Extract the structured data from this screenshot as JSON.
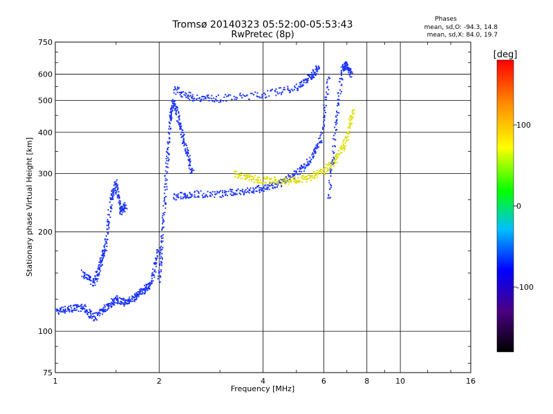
{
  "header": {
    "title": "Tromsø 20140323 05:52:00-05:53:43",
    "subtitle": "RwPretec (8p)",
    "phase_title": "Phases",
    "phase_o": "mean, sd,O: -94.3, 14.8",
    "phase_x": "mean, sd,X: 84.0, 19.7"
  },
  "colorbar": {
    "unit": "[deg]",
    "ticks": [
      "100",
      "0",
      "-100"
    ],
    "tick_values": [
      100,
      0,
      -100
    ],
    "range": [
      -180,
      180
    ],
    "stops": [
      "#000000",
      "#4b0082",
      "#0000ff",
      "#00bfff",
      "#00ff00",
      "#ffff00",
      "#ff8c00",
      "#ff0000"
    ]
  },
  "chart_data": {
    "type": "scatter",
    "title": "Tromsø 20140323 05:52:00-05:53:43",
    "subtitle": "RwPretec (8p)",
    "xlabel": "Frequency [MHz]",
    "ylabel": "Stationary phase Virtual Height [km]",
    "x_scale": "log",
    "y_scale": "log",
    "xlim": [
      1,
      16
    ],
    "ylim": [
      75,
      750
    ],
    "x_ticks": [
      1,
      2,
      4,
      6,
      8,
      10,
      16
    ],
    "x_tick_labels": [
      "1",
      "2",
      "4",
      "6",
      "8",
      "10",
      "16"
    ],
    "y_ticks": [
      75,
      100,
      200,
      300,
      400,
      500,
      600,
      750
    ],
    "y_tick_labels": [
      "75",
      "100",
      "200",
      "300",
      "400",
      "500",
      "600",
      "750"
    ],
    "grid": true,
    "series": [
      {
        "color_phase": -95,
        "x": [
          1.0,
          1.1,
          1.2,
          1.3,
          1.4,
          1.5,
          1.6,
          1.7,
          1.8,
          1.9,
          2.0
        ],
        "y": [
          115,
          117,
          118,
          110,
          118,
          125,
          122,
          127,
          133,
          140,
          180
        ]
      },
      {
        "color_phase": -95,
        "x": [
          1.2,
          1.3,
          1.35,
          1.4,
          1.45,
          1.5,
          1.55,
          1.6
        ],
        "y": [
          150,
          140,
          160,
          180,
          250,
          280,
          230,
          240
        ]
      },
      {
        "color_phase": -95,
        "x": [
          2.0,
          2.05,
          2.1,
          2.15,
          2.2,
          2.3,
          2.4,
          2.5
        ],
        "y": [
          140,
          200,
          300,
          430,
          500,
          420,
          350,
          300
        ]
      },
      {
        "color_phase": -95,
        "x": [
          2.2,
          2.5,
          3.0,
          3.5,
          4.0,
          4.5,
          5.0,
          5.5,
          5.9,
          6.2
        ],
        "y": [
          255,
          260,
          260,
          265,
          270,
          280,
          300,
          330,
          380,
          600
        ]
      },
      {
        "color_phase": -95,
        "x": [
          2.2,
          2.5,
          3.0,
          4.0,
          5.0,
          5.5,
          5.8
        ],
        "y": [
          540,
          510,
          505,
          520,
          545,
          590,
          630
        ]
      },
      {
        "color_phase": 95,
        "x": [
          3.3,
          3.7,
          4.2,
          4.8,
          5.4,
          6.0,
          6.5,
          7.0,
          7.3
        ],
        "y": [
          300,
          290,
          285,
          285,
          290,
          305,
          330,
          380,
          470
        ]
      },
      {
        "color_phase": -95,
        "x": [
          6.2,
          6.5,
          6.8,
          7.0,
          7.2
        ],
        "y": [
          250,
          420,
          620,
          640,
          600
        ]
      }
    ]
  }
}
